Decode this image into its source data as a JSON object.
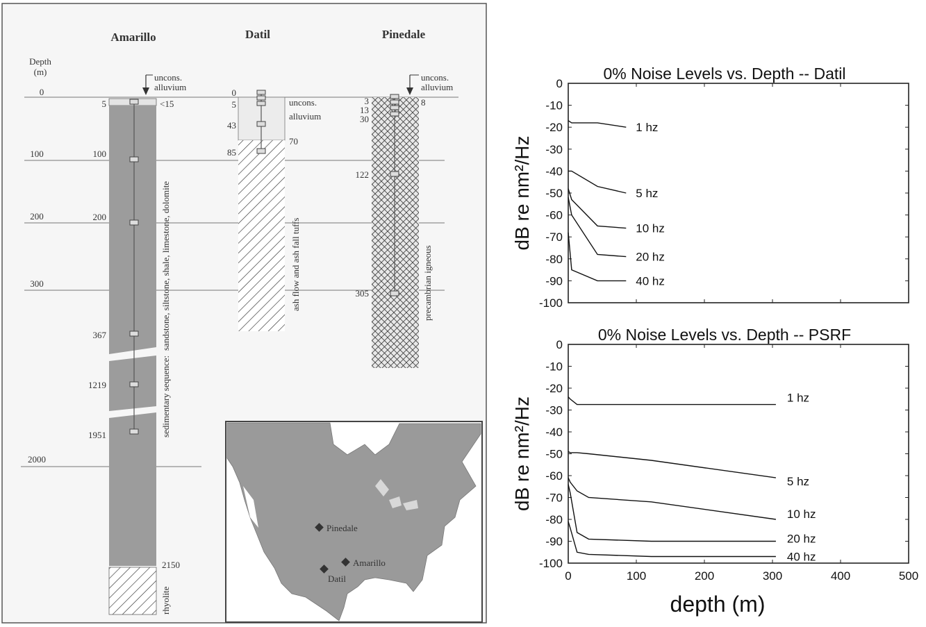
{
  "left_panel": {
    "wells": [
      {
        "name": "Amarillo"
      },
      {
        "name": "Datil"
      },
      {
        "name": "Pinedale"
      }
    ],
    "depth_axis": {
      "title_line1": "Depth",
      "title_line2": "(m)",
      "ticks": [
        "0",
        "100",
        "200",
        "300",
        "2000"
      ]
    },
    "amarillo": {
      "depths": [
        "5",
        "100",
        "200",
        "367",
        "1219",
        "1951",
        "2150"
      ],
      "surface_label": "<15",
      "lithology": "sandstone, siltstone, shale, limestone, dolomite",
      "sequence": "sedimentary sequence:",
      "base": "rhyolite",
      "arrow_label_line1": "uncons.",
      "arrow_label_line2": "alluvium"
    },
    "datil": {
      "depths": [
        "0",
        "5",
        "43",
        "85"
      ],
      "alluvium_line1": "uncons.",
      "alluvium_line2": "alluvium",
      "alluvium_base": "70",
      "lithology": "ash flow and ash fall tuffs"
    },
    "pinedale": {
      "depths": [
        "3",
        "13",
        "30",
        "122",
        "305"
      ],
      "surface_label": "8",
      "lithology": "precambrian igneous",
      "arrow_label_line1": "uncons.",
      "arrow_label_line2": "alluvium"
    },
    "map": {
      "sites": [
        {
          "name": "Pinedale"
        },
        {
          "name": "Amarillo"
        },
        {
          "name": "Datil"
        }
      ]
    }
  },
  "chart_data": [
    {
      "type": "line",
      "title": "0% Noise Levels vs. Depth -- Datil",
      "ylabel": "dB re nm²/Hz",
      "xlabel": "",
      "xlim": [
        0,
        500
      ],
      "ylim": [
        -100,
        0
      ],
      "yticks": [
        0,
        -10,
        -20,
        -30,
        -40,
        -50,
        -60,
        -70,
        -80,
        -90,
        -100
      ],
      "series": [
        {
          "name": "1 hz",
          "x": [
            0,
            5,
            43,
            85
          ],
          "values": [
            -17,
            -18,
            -18,
            -20
          ]
        },
        {
          "name": "5 hz",
          "x": [
            0,
            5,
            43,
            85
          ],
          "values": [
            -40,
            -40,
            -47,
            -50
          ]
        },
        {
          "name": "10 hz",
          "x": [
            0,
            5,
            43,
            85
          ],
          "values": [
            -48,
            -53,
            -65,
            -66
          ]
        },
        {
          "name": "20 hz",
          "x": [
            0,
            5,
            43,
            85
          ],
          "values": [
            -52,
            -60,
            -78,
            -79
          ]
        },
        {
          "name": "40 hz",
          "x": [
            0,
            5,
            43,
            85
          ],
          "values": [
            -68,
            -85,
            -90,
            -90
          ]
        }
      ]
    },
    {
      "type": "line",
      "title": "0% Noise Levels vs. Depth -- PSRF",
      "ylabel": "dB re nm²/Hz",
      "xlabel": "depth (m)",
      "xlim": [
        0,
        500
      ],
      "ylim": [
        -100,
        0
      ],
      "xticks": [
        0,
        100,
        200,
        300,
        400,
        500
      ],
      "yticks": [
        0,
        -10,
        -20,
        -30,
        -40,
        -50,
        -60,
        -70,
        -80,
        -90,
        -100
      ],
      "series": [
        {
          "name": "1 hz",
          "x": [
            0,
            3,
            13,
            30,
            122,
            305
          ],
          "values": [
            -24,
            -25,
            -27.5,
            -27.5,
            -27.5,
            -27.5
          ]
        },
        {
          "name": "5 hz",
          "x": [
            0,
            3,
            13,
            30,
            122,
            305
          ],
          "values": [
            -49,
            -49.5,
            -49.5,
            -50,
            -53,
            -61
          ]
        },
        {
          "name": "10 hz",
          "x": [
            0,
            3,
            13,
            30,
            122,
            305
          ],
          "values": [
            -61,
            -63,
            -67,
            -70,
            -72,
            -80
          ]
        },
        {
          "name": "20 hz",
          "x": [
            0,
            3,
            13,
            30,
            122,
            305
          ],
          "values": [
            -64,
            -68,
            -86,
            -89,
            -90,
            -90
          ]
        },
        {
          "name": "40 hz",
          "x": [
            0,
            3,
            13,
            30,
            122,
            305
          ],
          "values": [
            -81,
            -84,
            -95,
            -96,
            -97,
            -97
          ]
        }
      ]
    }
  ]
}
